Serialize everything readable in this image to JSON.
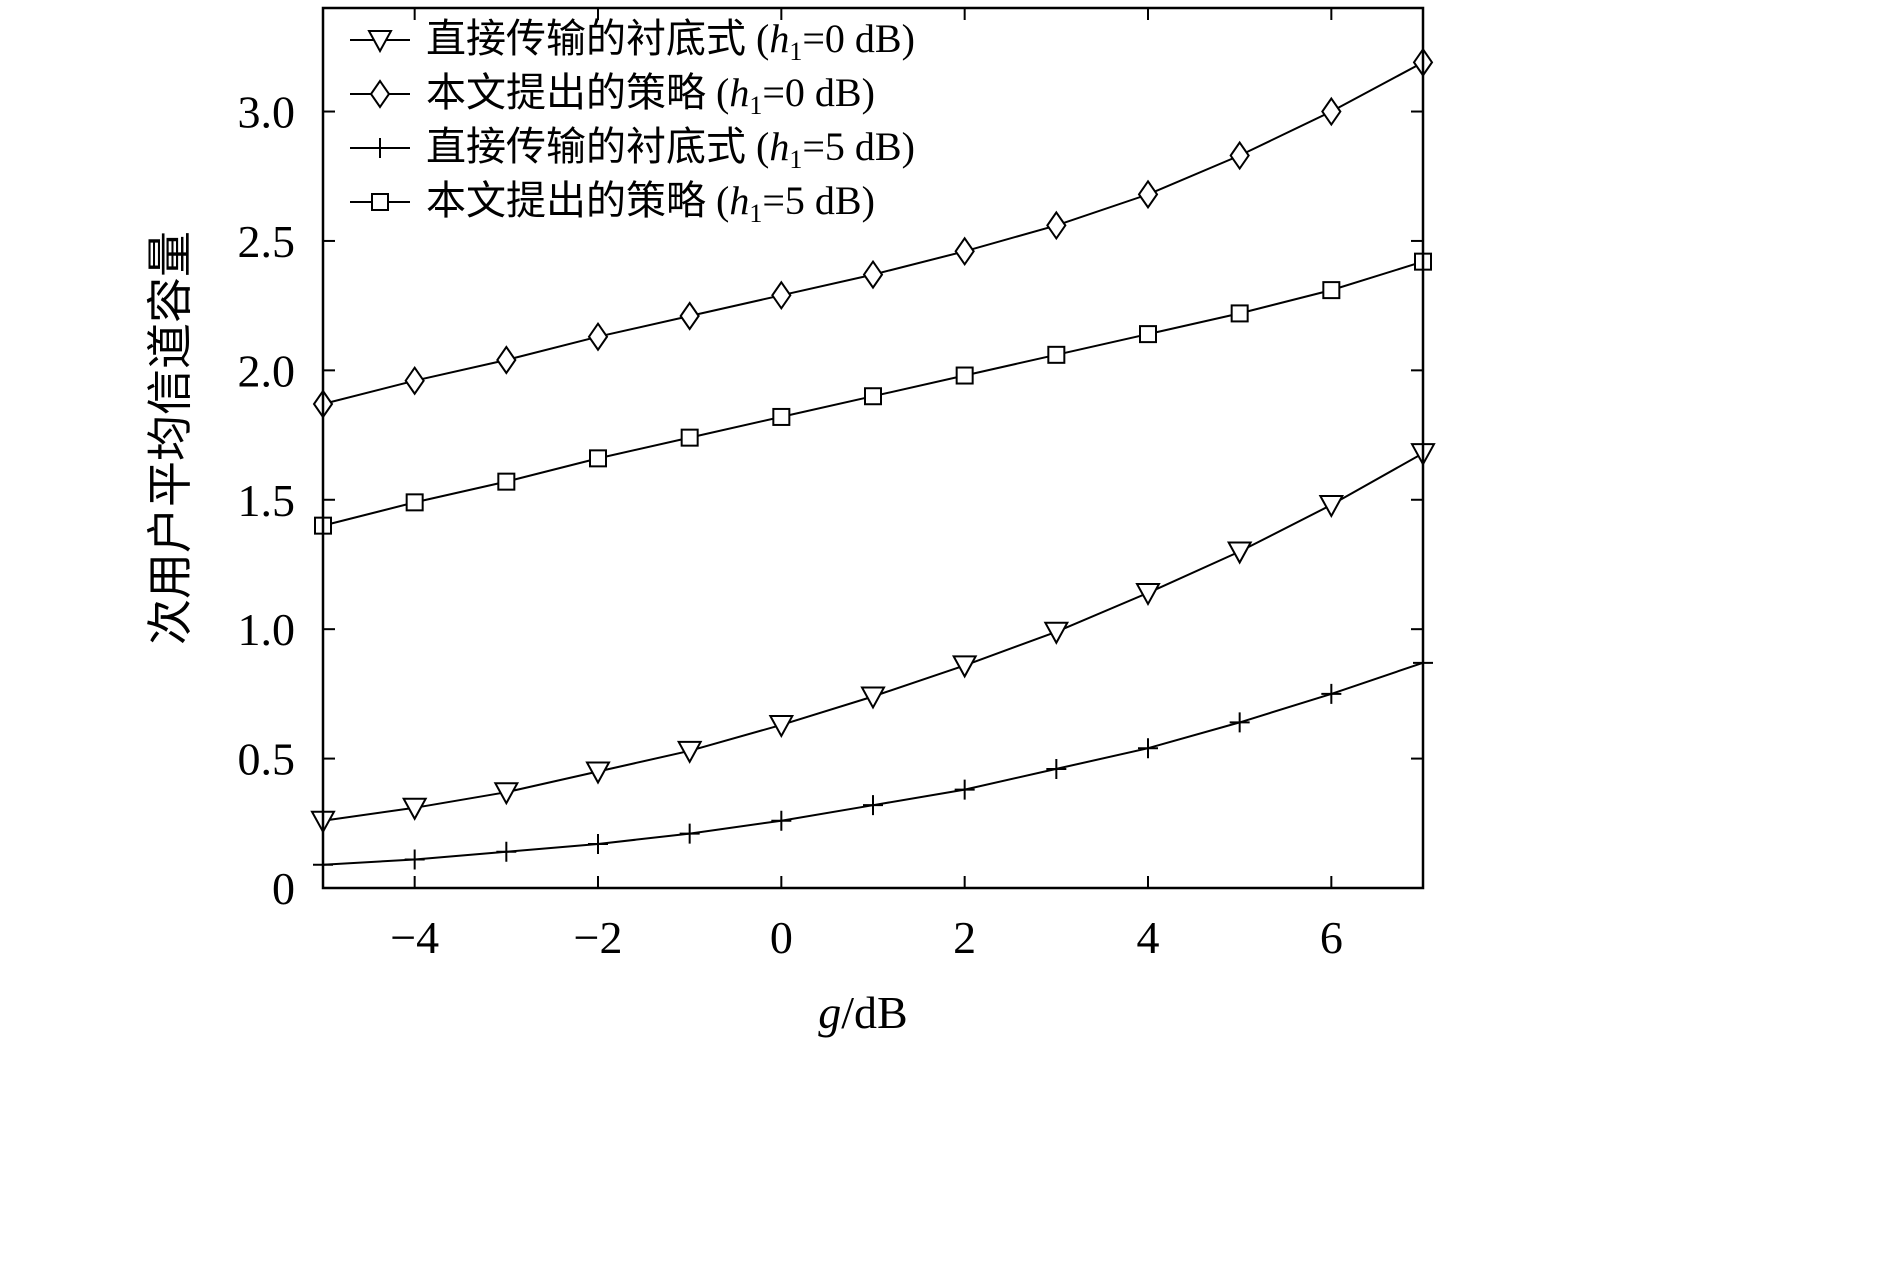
{
  "chart_data": {
    "type": "line",
    "title": "",
    "xlabel": {
      "italic": "g",
      "rest": "/dB"
    },
    "ylabel": "次用户平均信道容量",
    "xlim": [
      -5,
      7
    ],
    "ylim": [
      0,
      3.4
    ],
    "xticks": [
      -4,
      -2,
      0,
      2,
      4,
      6
    ],
    "xtick_labels": [
      "−4",
      "−2",
      "0",
      "2",
      "4",
      "6"
    ],
    "yticks": [
      0,
      0.5,
      1.0,
      1.5,
      2.0,
      2.5,
      3.0
    ],
    "ytick_labels": [
      "0",
      "0.5",
      "1.0",
      "1.5",
      "2.0",
      "2.5",
      "3.0"
    ],
    "grid": false,
    "legend_position": "top-left",
    "x": [
      -5,
      -4,
      -3,
      -2,
      -1,
      0,
      1,
      2,
      3,
      4,
      5,
      6,
      7
    ],
    "series": [
      {
        "name": "直接传输的衬底式 (h1=0 dB)",
        "legend": {
          "pre": "直接传输的衬底式 (",
          "var": "h",
          "sub": "1",
          "post": "=0 dB)"
        },
        "marker": "triangle-down",
        "values": [
          0.26,
          0.31,
          0.37,
          0.45,
          0.53,
          0.63,
          0.74,
          0.86,
          0.99,
          1.14,
          1.3,
          1.48,
          1.68
        ]
      },
      {
        "name": "本文提出的策略 (h1=0 dB)",
        "legend": {
          "pre": "本文提出的策略 (",
          "var": "h",
          "sub": "1",
          "post": "=0 dB)"
        },
        "marker": "diamond",
        "values": [
          1.87,
          1.96,
          2.04,
          2.13,
          2.21,
          2.29,
          2.37,
          2.46,
          2.56,
          2.68,
          2.83,
          3.0,
          3.19
        ]
      },
      {
        "name": "直接传输的衬底式 (h1=5 dB)",
        "legend": {
          "pre": "直接传输的衬底式 (",
          "var": "h",
          "sub": "1",
          "post": "=5 dB)"
        },
        "marker": "plus",
        "values": [
          0.09,
          0.11,
          0.14,
          0.17,
          0.21,
          0.26,
          0.32,
          0.38,
          0.46,
          0.54,
          0.64,
          0.75,
          0.87
        ]
      },
      {
        "name": "本文提出的策略 (h1=5 dB)",
        "legend": {
          "pre": "本文提出的策略 (",
          "var": "h",
          "sub": "1",
          "post": "=5 dB)"
        },
        "marker": "square",
        "values": [
          1.4,
          1.49,
          1.57,
          1.66,
          1.74,
          1.82,
          1.9,
          1.98,
          2.06,
          2.14,
          2.22,
          2.31,
          2.42
        ]
      }
    ]
  }
}
